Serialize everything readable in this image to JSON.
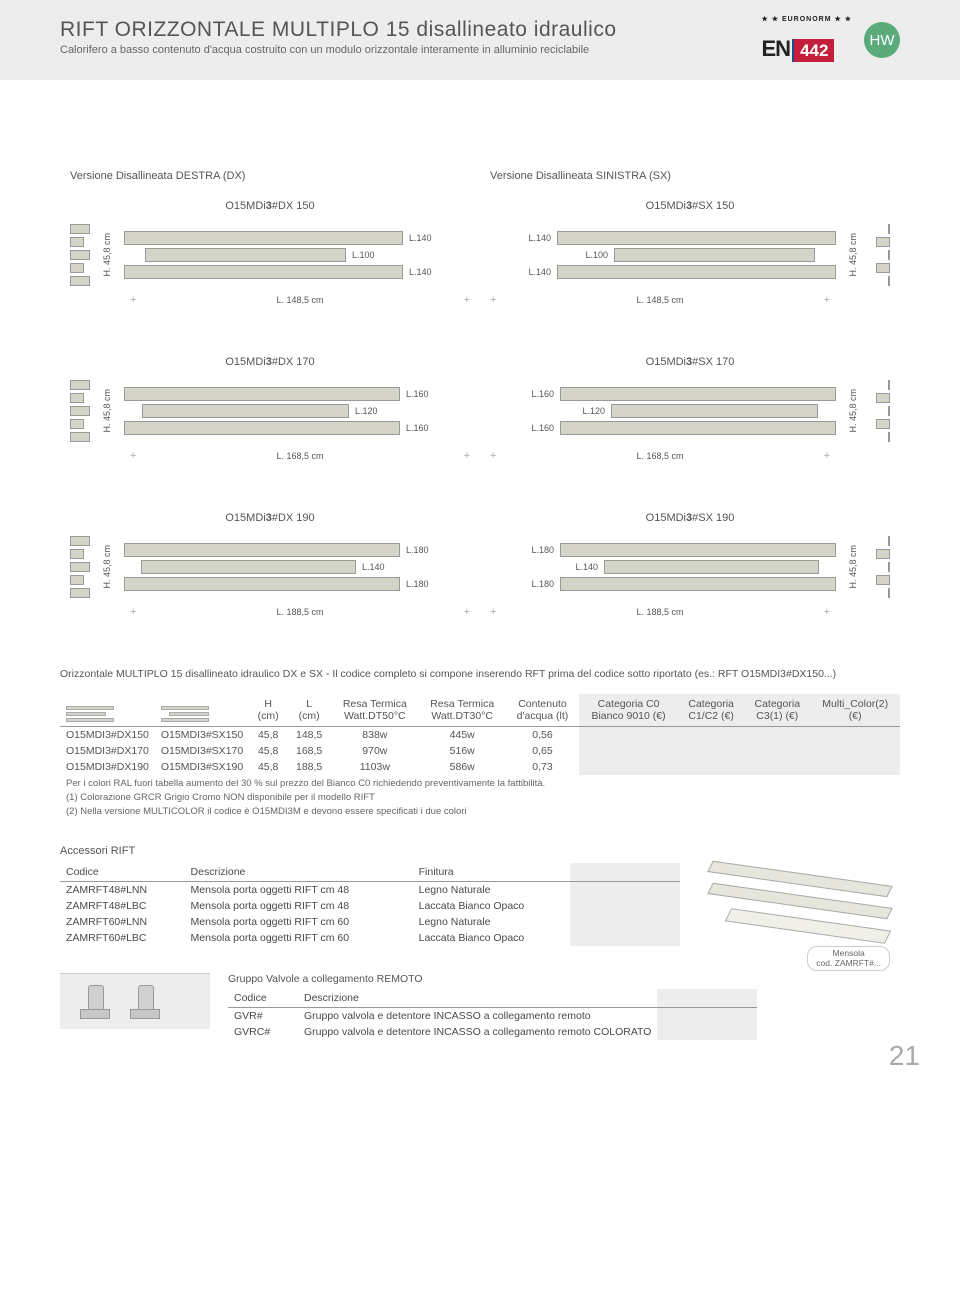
{
  "header": {
    "title": "RIFT ORIZZONTALE MULTIPLO 15 disallineato idraulico",
    "subtitle": "Calorifero a basso contenuto d'acqua costruito con un modulo orizzontale interamente in alluminio reciclabile",
    "en_text": "EN",
    "en_num": "442",
    "euronorm": "★ ★ EURONORM ★ ★",
    "hw": "HW"
  },
  "colors": {
    "bar_fill": "#d4d4c8",
    "bar_border": "#999999",
    "header_bg": "#ededed",
    "en_red": "#c41e3a",
    "hw_green": "#5aaa7a"
  },
  "version_dx": "Versione Disallineata DESTRA (DX)",
  "version_sx": "Versione Disallineata SINISTRA (SX)",
  "height_label": "H. 45,8 cm",
  "models": [
    {
      "dx": "O15MDi3#DX 150",
      "sx": "O15MDi3#SX 150",
      "bars": [
        {
          "label": "L.140",
          "w": 0.93,
          "offset": 0.0
        },
        {
          "label": "L.100",
          "w": 0.67,
          "offset": 0.07
        },
        {
          "label": "L.140",
          "w": 0.93,
          "offset": 0.0
        }
      ],
      "width": "L. 148,5 cm"
    },
    {
      "dx": "O15MDi3#DX 170",
      "sx": "O15MDi3#SX 170",
      "bars": [
        {
          "label": "L.160",
          "w": 0.92,
          "offset": 0.0
        },
        {
          "label": "L.120",
          "w": 0.69,
          "offset": 0.06
        },
        {
          "label": "L.160",
          "w": 0.92,
          "offset": 0.0
        }
      ],
      "width": "L. 168,5 cm"
    },
    {
      "dx": "O15MDi3#DX 190",
      "sx": "O15MDi3#SX 190",
      "bars": [
        {
          "label": "L.180",
          "w": 0.92,
          "offset": 0.0
        },
        {
          "label": "L.140",
          "w": 0.715,
          "offset": 0.055
        },
        {
          "label": "L.180",
          "w": 0.92,
          "offset": 0.0
        }
      ],
      "width": "L. 188,5 cm"
    }
  ],
  "code_note_lead": "Orizzontale MULTIPLO 15 disallineato idraulico DX e SX",
  "code_note_rest": " - Il codice completo si compone inserendo RFT prima del codice sotto riportato (es.: RFT O15MDI3#DX150...)",
  "main_table": {
    "headers": {
      "h": "H",
      "h2": "(cm)",
      "l": "L",
      "l2": "(cm)",
      "rt50a": "Resa Termica",
      "rt50b": "Watt.DT50°C",
      "rt30a": "Resa Termica",
      "rt30b": "Watt.DT30°C",
      "aquaa": "Contenuto",
      "aquab": "d'acqua (lt)",
      "c0a": "Categoria C0",
      "c0b": "Bianco 9010 (€)",
      "c12a": "Categoria",
      "c12b": "C1/C2 (€)",
      "c3a": "Categoria",
      "c3b": "C3(1) (€)",
      "mca": "Multi_Color(2)",
      "mcb": "(€)"
    },
    "rows": [
      {
        "dx": "O15MDI3#DX150",
        "sx": "O15MDI3#SX150",
        "h": "45,8",
        "l": "148,5",
        "dt50": "838w",
        "dt30": "445w",
        "aqua": "0,56"
      },
      {
        "dx": "O15MDI3#DX170",
        "sx": "O15MDI3#SX170",
        "h": "45,8",
        "l": "168,5",
        "dt50": "970w",
        "dt30": "516w",
        "aqua": "0,65"
      },
      {
        "dx": "O15MDI3#DX190",
        "sx": "O15MDI3#SX190",
        "h": "45,8",
        "l": "188,5",
        "dt50": "1103w",
        "dt30": "586w",
        "aqua": "0,73"
      }
    ],
    "foot1": "Per i colori RAL fuori tabella aumento del 30 % sul prezzo del Bianco C0 richiedendo preventivamente la fattibilità.",
    "foot2": "(1) Colorazione GRCR Grigio Cromo NON disponibile per il modello RIFT",
    "foot3": "(2) Nella versione MULTICOLOR il codice è O15MDI3M e devono essere specificati i due colori"
  },
  "acc": {
    "title": "Accessori RIFT",
    "h_code": "Codice",
    "h_desc": "Descrizione",
    "h_fin": "Finitura",
    "rows": [
      {
        "c": "ZAMRFT48#LNN",
        "d": "Mensola porta oggetti RIFT cm 48",
        "f": "Legno Naturale"
      },
      {
        "c": "ZAMRFT48#LBC",
        "d": "Mensola porta oggetti RIFT cm 48",
        "f": "Laccata Bianco Opaco"
      },
      {
        "c": "ZAMRFT60#LNN",
        "d": "Mensola porta oggetti RIFT cm 60",
        "f": "Legno Naturale"
      },
      {
        "c": "ZAMRFT60#LBC",
        "d": "Mensola porta oggetti RIFT cm 60",
        "f": "Laccata Bianco Opaco"
      }
    ],
    "cap1": "Mensola",
    "cap2": "cod. ZAMRFT#..."
  },
  "valve": {
    "title": "Gruppo Valvole a collegamento REMOTO",
    "h_code": "Codice",
    "h_desc": "Descrizione",
    "rows": [
      {
        "c": "GVR#",
        "d": "Gruppo valvola e detentore INCASSO a collegamento remoto"
      },
      {
        "c": "GVRC#",
        "d": "Gruppo valvola e detentore INCASSO a collegamento remoto COLORATO"
      }
    ]
  },
  "page_num": "21"
}
